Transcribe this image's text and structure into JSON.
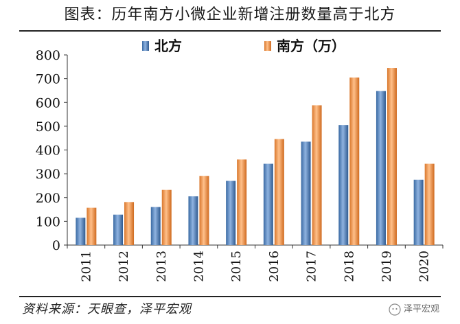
{
  "title": "图表：历年南方小微企业新增注册数量高于北方",
  "source": "资料来源：天眼查，泽平宏观",
  "watermark": "泽平宏观",
  "chart_data": {
    "type": "bar",
    "categories": [
      "2011",
      "2012",
      "2013",
      "2014",
      "2015",
      "2016",
      "2017",
      "2018",
      "2019",
      "2020"
    ],
    "series": [
      {
        "name": "北方",
        "color": "#4f81bd",
        "values": [
          115,
          128,
          160,
          205,
          270,
          342,
          435,
          505,
          648,
          275
        ]
      },
      {
        "name": "南方（万）",
        "color": "#f79646",
        "values": [
          157,
          181,
          232,
          291,
          360,
          446,
          588,
          705,
          745,
          342
        ]
      }
    ],
    "ylim": [
      0,
      800
    ],
    "yticks": [
      0,
      100,
      200,
      300,
      400,
      500,
      600,
      700,
      800
    ],
    "xlabel": "",
    "ylabel": "",
    "legend_position": "top",
    "grid": false
  }
}
